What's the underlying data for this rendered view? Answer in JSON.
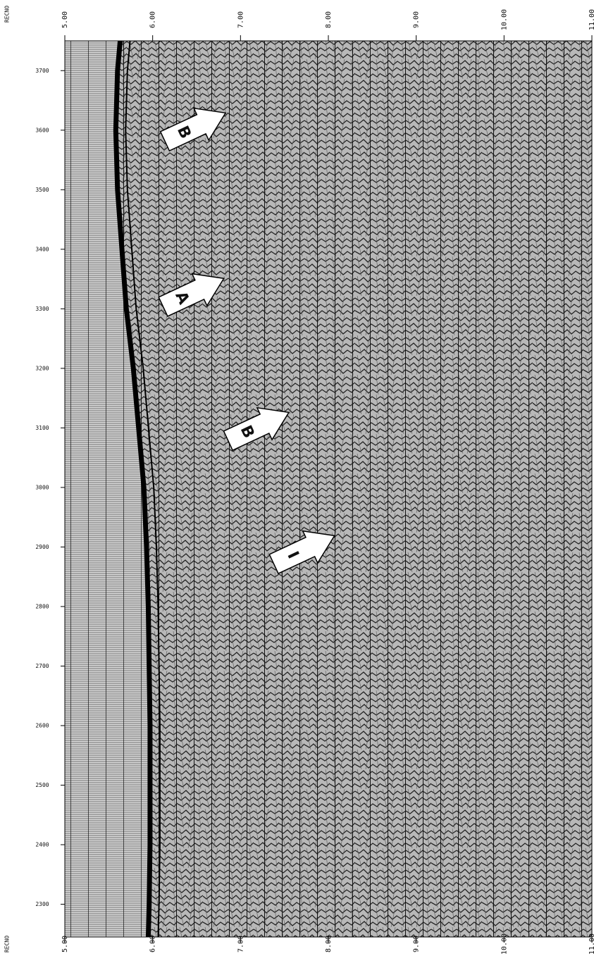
{
  "chart_data": {
    "type": "seismic",
    "x_label": "RECNO",
    "xlim": [
      5,
      11
    ],
    "xticks": [
      {
        "value": 5,
        "label": "5.00"
      },
      {
        "value": 6,
        "label": "6.00"
      },
      {
        "value": 7,
        "label": "7.00"
      },
      {
        "value": 8,
        "label": "8.00"
      },
      {
        "value": 9,
        "label": "9.00"
      },
      {
        "value": 10,
        "label": "10.00"
      },
      {
        "value": 11,
        "label": "11.00"
      }
    ],
    "ylim": [
      2245,
      3750
    ],
    "yticks": [
      3700,
      3600,
      3500,
      3400,
      3300,
      3200,
      3100,
      3000,
      2900,
      2800,
      2700,
      2600,
      2500,
      2400,
      2300
    ],
    "horizon": {
      "color": "#000000",
      "records": [
        3750,
        3700,
        3600,
        3500,
        3400,
        3300,
        3200,
        3100,
        3000,
        2900,
        2800,
        2700,
        2600,
        2500,
        2400,
        2300,
        2245
      ],
      "times": [
        5.63,
        5.6,
        5.58,
        5.6,
        5.65,
        5.7,
        5.78,
        5.84,
        5.9,
        5.93,
        5.95,
        5.96,
        5.97,
        5.97,
        5.97,
        5.96,
        5.95
      ]
    },
    "annotations": [
      {
        "text": "B",
        "time": 6.83,
        "record": 3629
      },
      {
        "text": "A",
        "time": 6.81,
        "record": 3351
      },
      {
        "text": "B",
        "time": 7.55,
        "record": 3126
      },
      {
        "text": "I",
        "time": 8.07,
        "record": 2919
      }
    ]
  }
}
